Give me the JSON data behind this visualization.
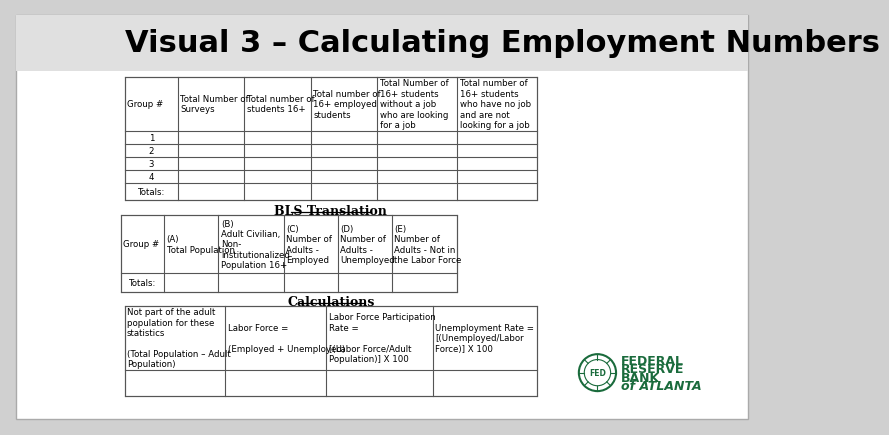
{
  "title": "Visual 3 – Calculating Employment Numbers",
  "title_fontsize": 22,
  "title_fontweight": "bold",
  "bg_color": "#d0d0d0",
  "slide_bg": "#ffffff",
  "table1_header": [
    "Group #",
    "Total Number of\nSurveys",
    "Total number of\nstudents 16+",
    "Total number of\n16+ employed\nstudents",
    "Total Number of\n16+ students\nwithout a job\nwho are looking\nfor a job",
    "Total number of\n16+ students\nwho have no job\nand are not\nlooking for a job"
  ],
  "table1_rows": [
    "1",
    "2",
    "3",
    "4",
    "Totals:"
  ],
  "table2_title": "BLS Translation",
  "table2_header": [
    "Group #",
    "(A)\nTotal Population",
    "(B)\nAdult Civilian,\nNon-\ninstitutionalized\nPopulation 16+",
    "(C)\nNumber of\nAdults -\nEmployed",
    "(D)\nNumber of\nAdults -\nUnemployed",
    "(E)\nNumber of\nAdults - Not in\nthe Labor Force"
  ],
  "table2_rows": [
    "Totals:"
  ],
  "table3_title": "Calculations",
  "table3_cells": [
    "Not part of the adult\npopulation for these\nstatistics\n\n(Total Population – Adult\nPopulation)",
    "Labor Force =\n\n(Employed + Unemployed)",
    "Labor Force Participation\nRate =\n\n[(Labor Force/Adult\nPopulation)] X 100",
    "Unemployment Rate =\n[(Unemployed/Labor\nForce)] X 100"
  ],
  "table_border_color": "#555555",
  "table_bg": "#ffffff",
  "font_size_table": 6.2,
  "fed_reserve_text": [
    "FEDERAL",
    "RESERVE",
    "BANK",
    "of ATLANTA"
  ],
  "fed_color": "#1a6b3c"
}
